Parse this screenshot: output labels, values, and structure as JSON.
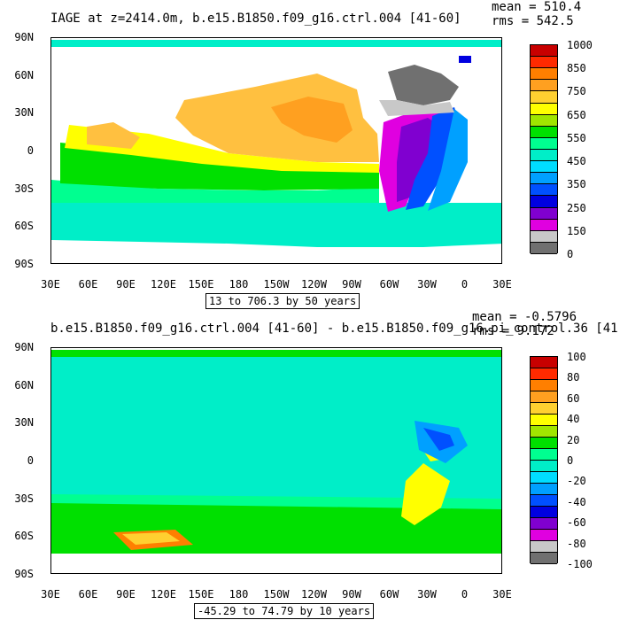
{
  "top": {
    "title": "IAGE at z=2414.0m, b.e15.B1850.f09_g16.ctrl.004 [41-60]",
    "mean": "mean = 510.4",
    "rms": "rms = 542.5",
    "range": "13 to 706.3 by 50 years",
    "colorbar_labels": [
      "1000",
      "850",
      "750",
      "650",
      "550",
      "450",
      "350",
      "250",
      "150",
      "0"
    ],
    "colors": [
      "#c80000",
      "#ff2a00",
      "#ff7f00",
      "#ffa020",
      "#ffd030",
      "#ffff00",
      "#a0e600",
      "#00e000",
      "#00ff90",
      "#00eec8",
      "#00ddff",
      "#00a0ff",
      "#0050ff",
      "#0000e0",
      "#8000d0",
      "#e000e0",
      "#c8c8c8",
      "#707070"
    ]
  },
  "bottom": {
    "title": "b.e15.B1850.f09_g16.ctrl.004 [41-60] - b.e15.B1850.f09_g16.pi_control.36 [41",
    "mean": "mean = -0.5796",
    "rms": "rms = 9.172",
    "range": "-45.29 to 74.79 by 10 years",
    "colorbar_labels": [
      "100",
      "80",
      "60",
      "40",
      "20",
      "0",
      "-20",
      "-40",
      "-60",
      "-80",
      "-100"
    ],
    "colors": [
      "#c80000",
      "#ff2a00",
      "#ff7f00",
      "#ffa020",
      "#ffd030",
      "#ffff00",
      "#a0e600",
      "#00e000",
      "#00ff90",
      "#00eec8",
      "#00ddff",
      "#00a0ff",
      "#0050ff",
      "#0000e0",
      "#8000d0",
      "#e000e0",
      "#c8c8c8",
      "#707070"
    ]
  },
  "axes": {
    "lat_labels": [
      "90N",
      "60N",
      "30N",
      "0",
      "30S",
      "60S",
      "90S"
    ],
    "lon_labels": [
      "30E",
      "60E",
      "90E",
      "120E",
      "150E",
      "180",
      "150W",
      "120W",
      "90W",
      "60W",
      "30W",
      "0",
      "30E"
    ]
  }
}
